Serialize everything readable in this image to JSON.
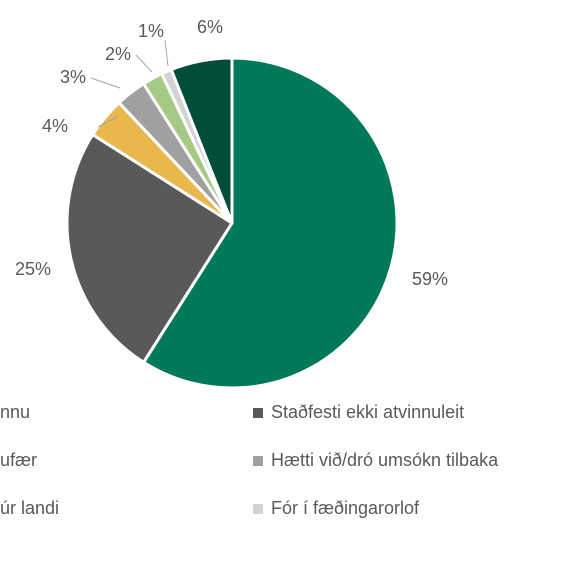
{
  "chart_data": {
    "type": "pie",
    "categories": [
      "nnu",
      "Staðfesti ekki atvinnuleit",
      "ufær",
      "Hætti við/dró umsókn tilbaka",
      "úr landi",
      "Fór í fæðingarorlof",
      null
    ],
    "values": [
      59,
      25,
      4,
      3,
      2,
      1,
      6
    ],
    "value_labels": [
      "59%",
      "25%",
      "4%",
      "3%",
      "2%",
      "1%",
      "6%"
    ],
    "colors": [
      "#00785a",
      "#595959",
      "#e9b84c",
      "#a0a0a0",
      "#a6c985",
      "#d3d3d3",
      "#004d3a"
    ]
  }
}
